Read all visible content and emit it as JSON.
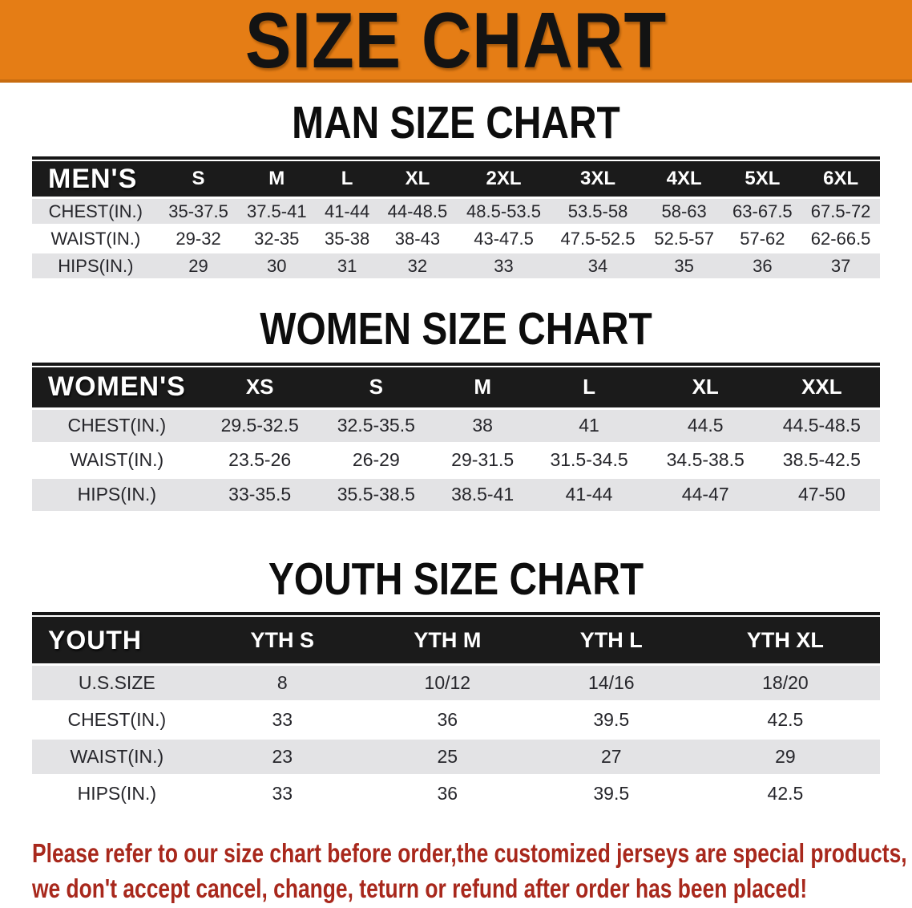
{
  "banner": {
    "title": "SIZE CHART"
  },
  "colors": {
    "banner_orange": "#e57d15",
    "table_header_black": "#1b1b1b",
    "row_gray": "#e3e3e5",
    "footer_red": "#a8281c"
  },
  "sections": {
    "men": {
      "heading": "MAN SIZE CHART",
      "table": {
        "corner": "MEN'S",
        "columns": [
          "S",
          "M",
          "L",
          "XL",
          "2XL",
          "3XL",
          "4XL",
          "5XL",
          "6XL"
        ],
        "rows": [
          {
            "label": "CHEST(IN.)",
            "values": [
              "35-37.5",
              "37.5-41",
              "41-44",
              "44-48.5",
              "48.5-53.5",
              "53.5-58",
              "58-63",
              "63-67.5",
              "67.5-72"
            ]
          },
          {
            "label": "WAIST(IN.)",
            "values": [
              "29-32",
              "32-35",
              "35-38",
              "38-43",
              "43-47.5",
              "47.5-52.5",
              "52.5-57",
              "57-62",
              "62-66.5"
            ]
          },
          {
            "label": "HIPS(IN.)",
            "values": [
              "29",
              "30",
              "31",
              "32",
              "33",
              "34",
              "35",
              "36",
              "37"
            ]
          }
        ]
      }
    },
    "women": {
      "heading": "WOMEN SIZE CHART",
      "table": {
        "corner": "WOMEN'S",
        "columns": [
          "XS",
          "S",
          "M",
          "L",
          "XL",
          "XXL"
        ],
        "rows": [
          {
            "label": "CHEST(IN.)",
            "values": [
              "29.5-32.5",
              "32.5-35.5",
              "38",
              "41",
              "44.5",
              "44.5-48.5"
            ]
          },
          {
            "label": "WAIST(IN.)",
            "values": [
              "23.5-26",
              "26-29",
              "29-31.5",
              "31.5-34.5",
              "34.5-38.5",
              "38.5-42.5"
            ]
          },
          {
            "label": "HIPS(IN.)",
            "values": [
              "33-35.5",
              "35.5-38.5",
              "38.5-41",
              "41-44",
              "44-47",
              "47-50"
            ]
          }
        ]
      }
    },
    "youth": {
      "heading": "YOUTH SIZE CHART",
      "table": {
        "corner": "YOUTH",
        "columns": [
          "YTH S",
          "YTH M",
          "YTH L",
          "YTH XL"
        ],
        "rows": [
          {
            "label": "U.S.SIZE",
            "values": [
              "8",
              "10/12",
              "14/16",
              "18/20"
            ]
          },
          {
            "label": "CHEST(IN.)",
            "values": [
              "33",
              "36",
              "39.5",
              "42.5"
            ]
          },
          {
            "label": "WAIST(IN.)",
            "values": [
              "23",
              "25",
              "27",
              "29"
            ]
          },
          {
            "label": "HIPS(IN.)",
            "values": [
              "33",
              "36",
              "39.5",
              "42.5"
            ]
          }
        ]
      }
    }
  },
  "footer": {
    "line1": "Please refer to our size chart before order,the customized jerseys are special products,",
    "line2": "we don't accept cancel, change, teturn or refund after order has been placed!"
  }
}
